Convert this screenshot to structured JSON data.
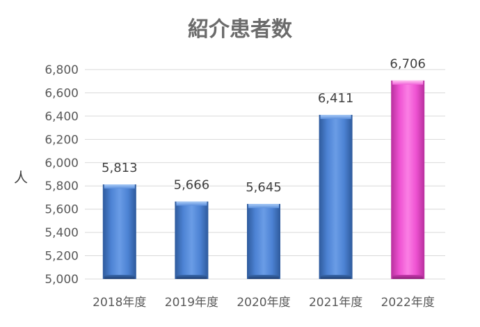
{
  "chart_data": {
    "type": "bar",
    "title": "紹介患者数",
    "ylabel": "人",
    "xlabel": "",
    "categories": [
      "2018年度",
      "2019年度",
      "2020年度",
      "2021年度",
      "2022年度"
    ],
    "values": [
      5813,
      5666,
      5645,
      6411,
      6706
    ],
    "value_labels": [
      "5,813",
      "5,666",
      "5,645",
      "6,411",
      "6,706"
    ],
    "ylim": [
      5000,
      6800
    ],
    "yticks": [
      "5,000",
      "5,200",
      "5,400",
      "5,600",
      "5,800",
      "6,000",
      "6,200",
      "6,400",
      "6,600",
      "6,800"
    ],
    "ytick_values": [
      5000,
      5200,
      5400,
      5600,
      5800,
      6000,
      6200,
      6400,
      6600,
      6800
    ],
    "grid": true,
    "legend": "none",
    "colors": {
      "default_bar": "#4f86d8",
      "highlight_bar": "#f25ed6",
      "highlight_index": 4
    }
  }
}
